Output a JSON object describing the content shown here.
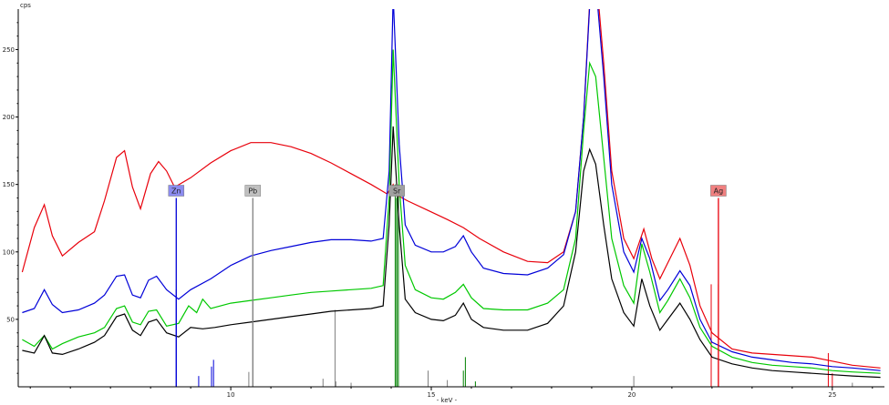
{
  "chart_data": {
    "type": "line",
    "ylabel": "cps",
    "xlabel": "- keV -",
    "xlim": [
      4.7,
      26.3
    ],
    "ylim": [
      0,
      280
    ],
    "x_ticks": [
      10,
      15,
      20,
      25
    ],
    "y_ticks": [
      50,
      100,
      150,
      200,
      250
    ],
    "grid": false,
    "legend": "none",
    "series": [
      {
        "color": "#e8000b",
        "points": [
          [
            4.8,
            85
          ],
          [
            5.1,
            118
          ],
          [
            5.35,
            135
          ],
          [
            5.55,
            112
          ],
          [
            5.8,
            97
          ],
          [
            6.2,
            107
          ],
          [
            6.6,
            115
          ],
          [
            6.85,
            138
          ],
          [
            7.15,
            170
          ],
          [
            7.35,
            175
          ],
          [
            7.55,
            148
          ],
          [
            7.75,
            132
          ],
          [
            8.0,
            158
          ],
          [
            8.2,
            167
          ],
          [
            8.4,
            160
          ],
          [
            8.6,
            148
          ],
          [
            9.0,
            155
          ],
          [
            9.5,
            166
          ],
          [
            10.0,
            175
          ],
          [
            10.5,
            181
          ],
          [
            11.0,
            181
          ],
          [
            11.5,
            178
          ],
          [
            12.0,
            173
          ],
          [
            12.5,
            166
          ],
          [
            13.0,
            158
          ],
          [
            13.5,
            150
          ],
          [
            13.9,
            143
          ],
          [
            14.05,
            150
          ],
          [
            14.15,
            142
          ],
          [
            14.4,
            138
          ],
          [
            14.9,
            131
          ],
          [
            15.4,
            124
          ],
          [
            15.8,
            118
          ],
          [
            16.2,
            110
          ],
          [
            16.8,
            100
          ],
          [
            17.4,
            93
          ],
          [
            17.9,
            92
          ],
          [
            18.3,
            100
          ],
          [
            18.6,
            130
          ],
          [
            18.8,
            200
          ],
          [
            18.95,
            285
          ],
          [
            19.1,
            310
          ],
          [
            19.3,
            240
          ],
          [
            19.5,
            160
          ],
          [
            19.8,
            110
          ],
          [
            20.05,
            95
          ],
          [
            20.3,
            117
          ],
          [
            20.5,
            95
          ],
          [
            20.7,
            80
          ],
          [
            20.9,
            92
          ],
          [
            21.2,
            110
          ],
          [
            21.45,
            90
          ],
          [
            21.7,
            60
          ],
          [
            22.0,
            40
          ],
          [
            22.5,
            28
          ],
          [
            23.0,
            25
          ],
          [
            23.5,
            24
          ],
          [
            24.0,
            23
          ],
          [
            24.5,
            22
          ],
          [
            25.0,
            19
          ],
          [
            25.5,
            16
          ],
          [
            26.2,
            14
          ]
        ]
      },
      {
        "color": "#0000d8",
        "points": [
          [
            4.8,
            55
          ],
          [
            5.1,
            58
          ],
          [
            5.35,
            72
          ],
          [
            5.55,
            61
          ],
          [
            5.8,
            55
          ],
          [
            6.2,
            57
          ],
          [
            6.6,
            62
          ],
          [
            6.85,
            68
          ],
          [
            7.15,
            82
          ],
          [
            7.35,
            83
          ],
          [
            7.55,
            68
          ],
          [
            7.75,
            66
          ],
          [
            7.95,
            79
          ],
          [
            8.15,
            82
          ],
          [
            8.4,
            72
          ],
          [
            8.7,
            65
          ],
          [
            9.0,
            72
          ],
          [
            9.5,
            80
          ],
          [
            10.0,
            90
          ],
          [
            10.5,
            97
          ],
          [
            11.0,
            101
          ],
          [
            11.5,
            104
          ],
          [
            12.0,
            107
          ],
          [
            12.5,
            109
          ],
          [
            13.0,
            109
          ],
          [
            13.5,
            108
          ],
          [
            13.8,
            110
          ],
          [
            13.95,
            160
          ],
          [
            14.05,
            290
          ],
          [
            14.2,
            180
          ],
          [
            14.35,
            120
          ],
          [
            14.6,
            105
          ],
          [
            15.0,
            100
          ],
          [
            15.3,
            100
          ],
          [
            15.6,
            104
          ],
          [
            15.8,
            112
          ],
          [
            16.0,
            100
          ],
          [
            16.3,
            88
          ],
          [
            16.8,
            84
          ],
          [
            17.4,
            83
          ],
          [
            17.9,
            88
          ],
          [
            18.3,
            98
          ],
          [
            18.6,
            130
          ],
          [
            18.8,
            200
          ],
          [
            18.95,
            282
          ],
          [
            19.1,
            300
          ],
          [
            19.3,
            230
          ],
          [
            19.5,
            150
          ],
          [
            19.8,
            100
          ],
          [
            20.05,
            85
          ],
          [
            20.25,
            110
          ],
          [
            20.45,
            95
          ],
          [
            20.7,
            64
          ],
          [
            20.9,
            72
          ],
          [
            21.2,
            86
          ],
          [
            21.45,
            75
          ],
          [
            21.7,
            50
          ],
          [
            22.0,
            33
          ],
          [
            22.5,
            26
          ],
          [
            23.0,
            22
          ],
          [
            23.5,
            20
          ],
          [
            24.0,
            18
          ],
          [
            24.5,
            17
          ],
          [
            25.0,
            15
          ],
          [
            25.5,
            14
          ],
          [
            26.2,
            12
          ]
        ]
      },
      {
        "color": "#00c800",
        "points": [
          [
            4.8,
            35
          ],
          [
            5.1,
            30
          ],
          [
            5.35,
            38
          ],
          [
            5.55,
            28
          ],
          [
            5.8,
            32
          ],
          [
            6.2,
            37
          ],
          [
            6.6,
            40
          ],
          [
            6.85,
            44
          ],
          [
            7.15,
            58
          ],
          [
            7.35,
            60
          ],
          [
            7.55,
            48
          ],
          [
            7.75,
            46
          ],
          [
            7.95,
            56
          ],
          [
            8.15,
            57
          ],
          [
            8.4,
            45
          ],
          [
            8.7,
            47
          ],
          [
            8.95,
            60
          ],
          [
            9.15,
            55
          ],
          [
            9.3,
            65
          ],
          [
            9.5,
            58
          ],
          [
            10.0,
            62
          ],
          [
            10.5,
            64
          ],
          [
            11.0,
            66
          ],
          [
            11.5,
            68
          ],
          [
            12.0,
            70
          ],
          [
            12.5,
            71
          ],
          [
            13.0,
            72
          ],
          [
            13.5,
            73
          ],
          [
            13.8,
            75
          ],
          [
            13.95,
            140
          ],
          [
            14.05,
            250
          ],
          [
            14.2,
            150
          ],
          [
            14.35,
            90
          ],
          [
            14.6,
            72
          ],
          [
            15.0,
            66
          ],
          [
            15.3,
            65
          ],
          [
            15.6,
            70
          ],
          [
            15.8,
            76
          ],
          [
            16.0,
            66
          ],
          [
            16.3,
            58
          ],
          [
            16.8,
            57
          ],
          [
            17.4,
            57
          ],
          [
            17.9,
            62
          ],
          [
            18.3,
            72
          ],
          [
            18.6,
            110
          ],
          [
            18.8,
            190
          ],
          [
            18.95,
            240
          ],
          [
            19.1,
            230
          ],
          [
            19.3,
            170
          ],
          [
            19.5,
            110
          ],
          [
            19.8,
            75
          ],
          [
            20.05,
            62
          ],
          [
            20.25,
            106
          ],
          [
            20.45,
            85
          ],
          [
            20.7,
            55
          ],
          [
            20.9,
            64
          ],
          [
            21.2,
            80
          ],
          [
            21.45,
            66
          ],
          [
            21.7,
            44
          ],
          [
            22.0,
            30
          ],
          [
            22.5,
            22
          ],
          [
            23.0,
            18
          ],
          [
            23.5,
            16
          ],
          [
            24.0,
            15
          ],
          [
            24.5,
            14
          ],
          [
            25.0,
            12
          ],
          [
            25.5,
            11
          ],
          [
            26.2,
            10
          ]
        ]
      },
      {
        "color": "#000000",
        "points": [
          [
            4.8,
            27
          ],
          [
            5.1,
            25
          ],
          [
            5.35,
            38
          ],
          [
            5.55,
            25
          ],
          [
            5.8,
            24
          ],
          [
            6.2,
            28
          ],
          [
            6.6,
            33
          ],
          [
            6.85,
            38
          ],
          [
            7.15,
            52
          ],
          [
            7.35,
            54
          ],
          [
            7.55,
            42
          ],
          [
            7.75,
            38
          ],
          [
            7.95,
            48
          ],
          [
            8.15,
            50
          ],
          [
            8.4,
            40
          ],
          [
            8.7,
            37
          ],
          [
            9.0,
            44
          ],
          [
            9.3,
            43
          ],
          [
            9.6,
            44
          ],
          [
            10.0,
            46
          ],
          [
            10.5,
            48
          ],
          [
            11.0,
            50
          ],
          [
            11.5,
            52
          ],
          [
            12.0,
            54
          ],
          [
            12.5,
            56
          ],
          [
            13.0,
            57
          ],
          [
            13.5,
            58
          ],
          [
            13.8,
            60
          ],
          [
            13.95,
            120
          ],
          [
            14.05,
            193
          ],
          [
            14.2,
            120
          ],
          [
            14.35,
            65
          ],
          [
            14.6,
            55
          ],
          [
            15.0,
            50
          ],
          [
            15.3,
            49
          ],
          [
            15.6,
            53
          ],
          [
            15.8,
            62
          ],
          [
            16.0,
            50
          ],
          [
            16.3,
            44
          ],
          [
            16.8,
            42
          ],
          [
            17.4,
            42
          ],
          [
            17.9,
            47
          ],
          [
            18.3,
            60
          ],
          [
            18.6,
            100
          ],
          [
            18.8,
            160
          ],
          [
            18.95,
            176
          ],
          [
            19.1,
            165
          ],
          [
            19.3,
            120
          ],
          [
            19.5,
            80
          ],
          [
            19.8,
            55
          ],
          [
            20.05,
            45
          ],
          [
            20.25,
            80
          ],
          [
            20.45,
            60
          ],
          [
            20.7,
            42
          ],
          [
            20.9,
            50
          ],
          [
            21.2,
            62
          ],
          [
            21.45,
            50
          ],
          [
            21.7,
            35
          ],
          [
            22.0,
            22
          ],
          [
            22.5,
            17
          ],
          [
            23.0,
            14
          ],
          [
            23.5,
            12
          ],
          [
            24.0,
            11
          ],
          [
            24.5,
            10
          ],
          [
            25.0,
            9
          ],
          [
            25.5,
            8
          ],
          [
            26.2,
            7
          ]
        ]
      }
    ],
    "element_markers": [
      {
        "label": "Zn",
        "energy": 8.64,
        "line_value": 140,
        "color": "#0000d8",
        "tag_color": "#8c8cf0"
      },
      {
        "label": "Pb",
        "energy": 10.55,
        "line_value": 140,
        "color": "#808080",
        "tag_color": "#c0c0c0"
      },
      {
        "label": "Sr",
        "energy": 14.14,
        "line_value": 140,
        "color": "#008000",
        "tag_color": "#a0a0a0"
      },
      {
        "label": "Ag",
        "energy": 22.16,
        "line_value": 140,
        "color": "#e8000b",
        "tag_color": "#f08080"
      }
    ],
    "reference_lines": [
      {
        "energy": 8.64,
        "value": 72,
        "color": "#0000d8"
      },
      {
        "energy": 9.57,
        "value": 20,
        "color": "#0000d8"
      },
      {
        "energy": 9.52,
        "value": 15,
        "color": "#0000d8"
      },
      {
        "energy": 9.2,
        "value": 8,
        "color": "#0000d8"
      },
      {
        "energy": 10.45,
        "value": 11,
        "color": "#808080"
      },
      {
        "energy": 10.55,
        "value": 100,
        "color": "#808080"
      },
      {
        "energy": 12.6,
        "value": 57,
        "color": "#808080"
      },
      {
        "energy": 12.3,
        "value": 6,
        "color": "#808080"
      },
      {
        "energy": 12.62,
        "value": 4,
        "color": "#808080"
      },
      {
        "energy": 13.0,
        "value": 3,
        "color": "#808080"
      },
      {
        "energy": 14.1,
        "value": 150,
        "color": "#008000"
      },
      {
        "energy": 14.18,
        "value": 150,
        "color": "#008000"
      },
      {
        "energy": 15.4,
        "value": 5,
        "color": "#808080"
      },
      {
        "energy": 15.8,
        "value": 12,
        "color": "#008000"
      },
      {
        "energy": 15.85,
        "value": 22,
        "color": "#008000"
      },
      {
        "energy": 16.1,
        "value": 4,
        "color": "#008000"
      },
      {
        "energy": 14.92,
        "value": 12,
        "color": "#808080"
      },
      {
        "energy": 20.05,
        "value": 8,
        "color": "#808080"
      },
      {
        "energy": 21.98,
        "value": 76,
        "color": "#e8000b"
      },
      {
        "energy": 22.16,
        "value": 76,
        "color": "#e8000b"
      },
      {
        "energy": 24.9,
        "value": 25,
        "color": "#e8000b"
      },
      {
        "energy": 25.0,
        "value": 10,
        "color": "#e8000b"
      },
      {
        "energy": 25.5,
        "value": 3,
        "color": "#808080"
      }
    ]
  }
}
